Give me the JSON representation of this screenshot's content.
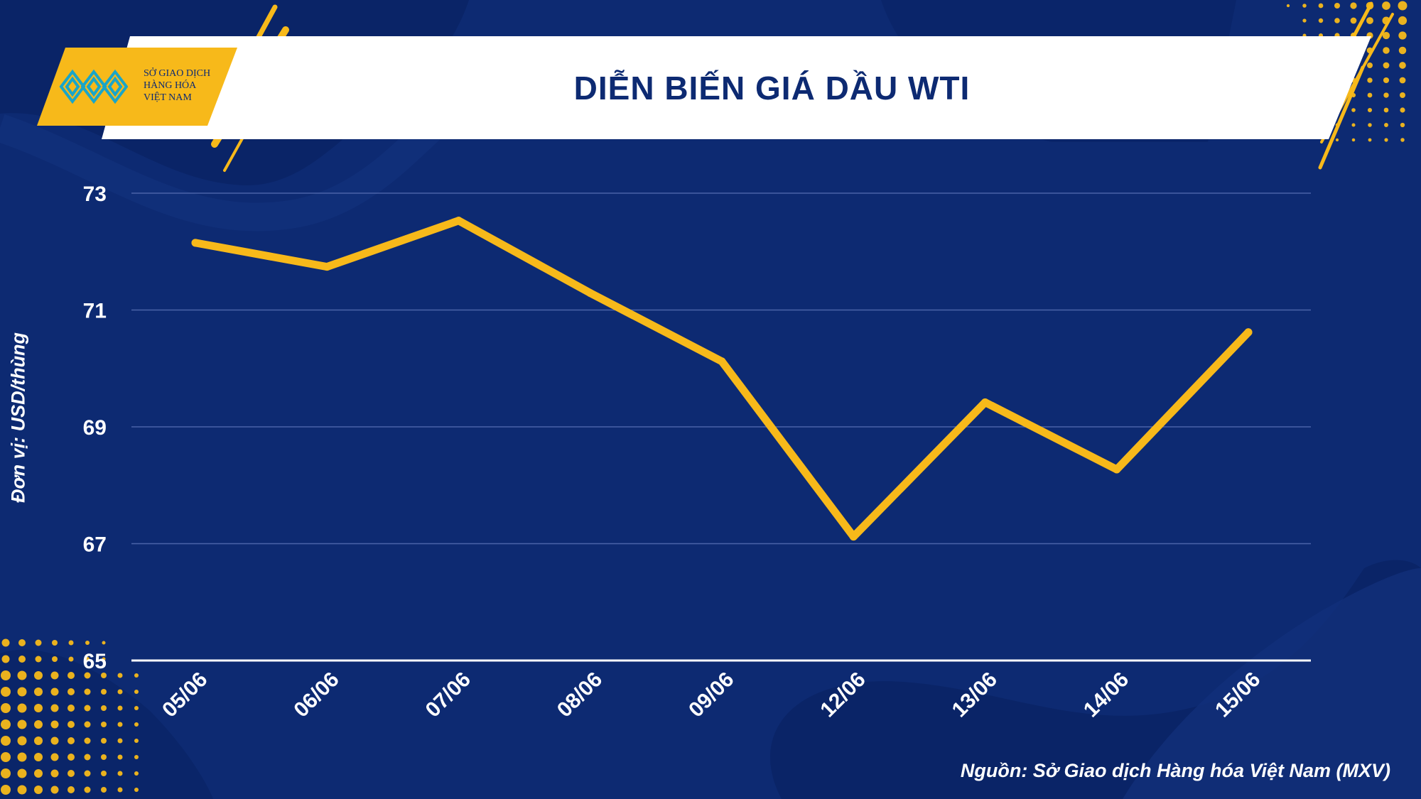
{
  "header": {
    "title": "DIỄN BIẾN GIÁ DẦU WTI",
    "logo_lines": [
      "SỞ GIAO DỊCH",
      "HÀNG HÓA",
      "VIỆT NAM"
    ]
  },
  "colors": {
    "background": "#0d2a72",
    "accent": "#f7b91a",
    "line": "#f7b91a",
    "text": "#ffffff",
    "grid": "#4a63a8"
  },
  "source_note": "Nguồn: Sở Giao dịch Hàng hóa Việt Nam (MXV)",
  "chart_data": {
    "type": "line",
    "title": "DIỄN BIẾN GIÁ DẦU WTI",
    "xlabel": "",
    "ylabel": "Đơn vị: USD/thùng",
    "categories": [
      "05/06",
      "06/06",
      "07/06",
      "08/06",
      "09/06",
      "12/06",
      "13/06",
      "14/06",
      "15/06"
    ],
    "series": [
      {
        "values": [
          72.15,
          71.74,
          72.53,
          71.29,
          70.12,
          67.12,
          69.42,
          68.27,
          70.62
        ]
      }
    ],
    "ylim": [
      65,
      73
    ],
    "yticks": [
      73,
      71,
      69,
      67,
      65
    ],
    "grid": "horizontal",
    "legend": "none"
  }
}
